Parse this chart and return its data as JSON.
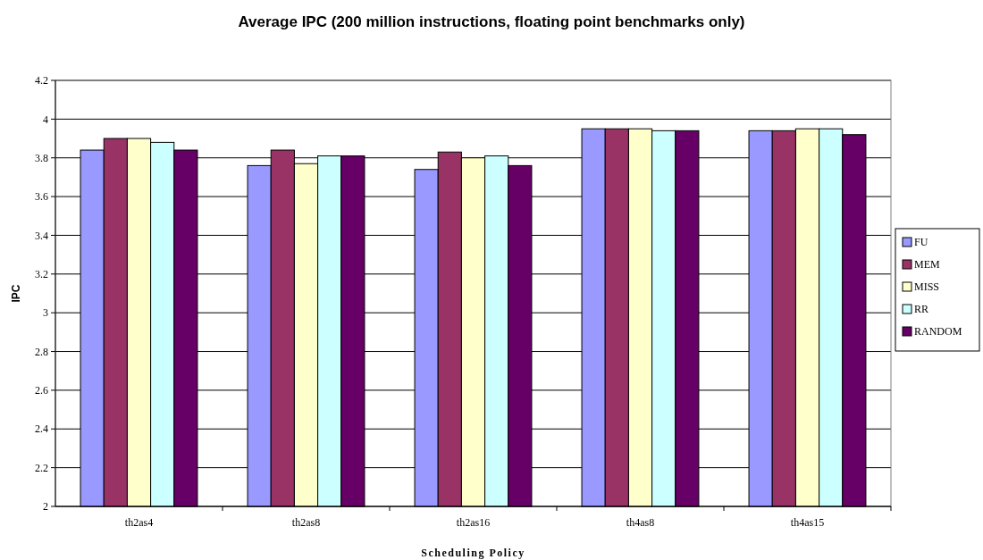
{
  "chart_data": {
    "type": "bar",
    "title": "Average IPC (200 million instructions, floating point benchmarks only)",
    "xlabel": "Scheduling Policy",
    "ylabel": "IPC",
    "categories": [
      "th2as4",
      "th2as8",
      "th2as16",
      "th4as8",
      "th4as15"
    ],
    "series": [
      {
        "name": "FU",
        "color": "#9999ff",
        "values": [
          3.84,
          3.76,
          3.74,
          3.95,
          3.94
        ]
      },
      {
        "name": "MEM",
        "color": "#993366",
        "values": [
          3.9,
          3.84,
          3.83,
          3.95,
          3.94
        ]
      },
      {
        "name": "MISS",
        "color": "#ffffcc",
        "values": [
          3.9,
          3.77,
          3.8,
          3.95,
          3.95
        ]
      },
      {
        "name": "RR",
        "color": "#ccffff",
        "values": [
          3.88,
          3.81,
          3.81,
          3.94,
          3.95
        ]
      },
      {
        "name": "RANDOM",
        "color": "#660066",
        "values": [
          3.84,
          3.81,
          3.76,
          3.94,
          3.92
        ]
      }
    ],
    "ylim": [
      2,
      4.2
    ],
    "yticks": [
      2,
      2.2,
      2.4,
      2.6,
      2.8,
      3,
      3.2,
      3.4,
      3.6,
      3.8,
      4,
      4.2
    ],
    "grid": "y",
    "legend": "right"
  }
}
